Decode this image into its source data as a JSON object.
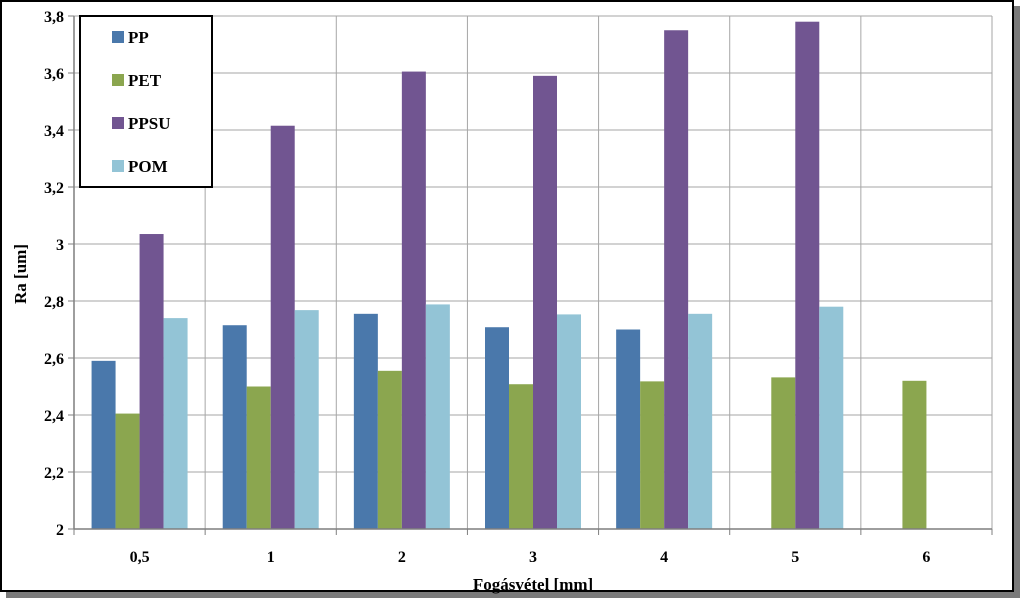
{
  "chart_data": {
    "type": "bar",
    "xlabel": "Fogásvétel [mm]",
    "ylabel": "Ra [um]",
    "categories": [
      "0,5",
      "1",
      "2",
      "3",
      "4",
      "5",
      "6"
    ],
    "ylim": [
      2,
      3.8
    ],
    "ytick_values": [
      2,
      2.2,
      2.4,
      2.6,
      2.8,
      3,
      3.2,
      3.4,
      3.6,
      3.8
    ],
    "ytick_labels": [
      "2",
      "2,2",
      "2,4",
      "2,6",
      "2,8",
      "3",
      "3,2",
      "3,4",
      "3,6",
      "3,8"
    ],
    "grid": true,
    "legend_position": "top-left",
    "series": [
      {
        "name": "PP",
        "color": "#4a78ab",
        "values": [
          2.59,
          2.715,
          2.755,
          2.708,
          2.7,
          null,
          null
        ]
      },
      {
        "name": "PET",
        "color": "#8ba64f",
        "values": [
          2.405,
          2.5,
          2.555,
          2.508,
          2.518,
          2.532,
          2.52
        ]
      },
      {
        "name": "PPSU",
        "color": "#715591",
        "values": [
          3.035,
          3.415,
          3.605,
          3.59,
          3.75,
          3.78,
          null
        ]
      },
      {
        "name": "POM",
        "color": "#93c4d6",
        "values": [
          2.74,
          2.768,
          2.788,
          2.753,
          2.755,
          2.78,
          null
        ]
      }
    ]
  }
}
